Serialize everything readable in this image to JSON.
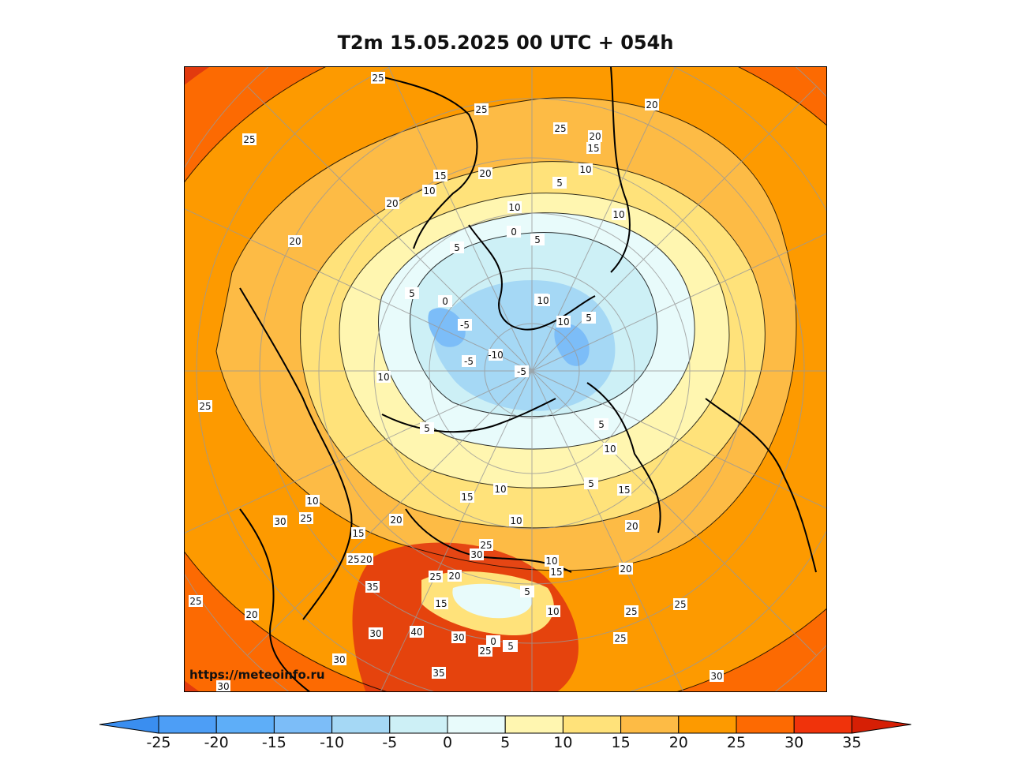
{
  "title": "T2m 15.05.2025 00 UTC + 054h",
  "credit": "https://meteoinfo.ru",
  "map": {
    "projection": "north polar stereographic",
    "variable": "2 m air temperature",
    "contour_interval": 5,
    "contour_labels": [
      "25",
      "25",
      "20",
      "25",
      "15",
      "10",
      "20",
      "25",
      "20",
      "20",
      "20",
      "15",
      "10",
      "10",
      "5",
      "0",
      "5",
      "10",
      "5",
      "10",
      "-5",
      "0",
      "5",
      "-10",
      "-5",
      "-5",
      "10",
      "10",
      "5",
      "10",
      "5",
      "5",
      "10",
      "15",
      "15",
      "10",
      "10",
      "20",
      "25",
      "25",
      "20",
      "15",
      "5",
      "10",
      "5",
      "10",
      "5",
      "20",
      "30",
      "25",
      "20",
      "15",
      "25",
      "10",
      "30",
      "35",
      "40",
      "35",
      "30",
      "25",
      "20",
      "25",
      "0",
      "5",
      "30",
      "25",
      "30",
      "30",
      "25",
      "25",
      "30",
      "25",
      "20",
      "15"
    ]
  },
  "colorbar": {
    "ticks": [
      "-25",
      "-20",
      "-15",
      "-10",
      "-5",
      "0",
      "5",
      "10",
      "15",
      "20",
      "25",
      "30",
      "35"
    ],
    "colors": [
      "#3a8ef0",
      "#4d9ef6",
      "#5eaef8",
      "#7cbdf8",
      "#a5d8f5",
      "#cdf0f6",
      "#e8fbfb",
      "#fff6b0",
      "#ffe27a",
      "#fdbb45",
      "#fd9a00",
      "#fd6a02",
      "#f0330b",
      "#d61f05"
    ],
    "min_color": "#3a8ef0",
    "max_color": "#d61f05"
  },
  "palette": {
    "very_hot": "#e23a0e",
    "hot": "#fc6a02",
    "warm": "#fd9a00",
    "mild": "#fdbb45",
    "cool": "#ffe27a",
    "cold": "#fff6b0",
    "colder": "#e8fbfb",
    "freezing": "#cdf0f6",
    "icy": "#a5d8f5",
    "coldest": "#7cbdf8"
  }
}
